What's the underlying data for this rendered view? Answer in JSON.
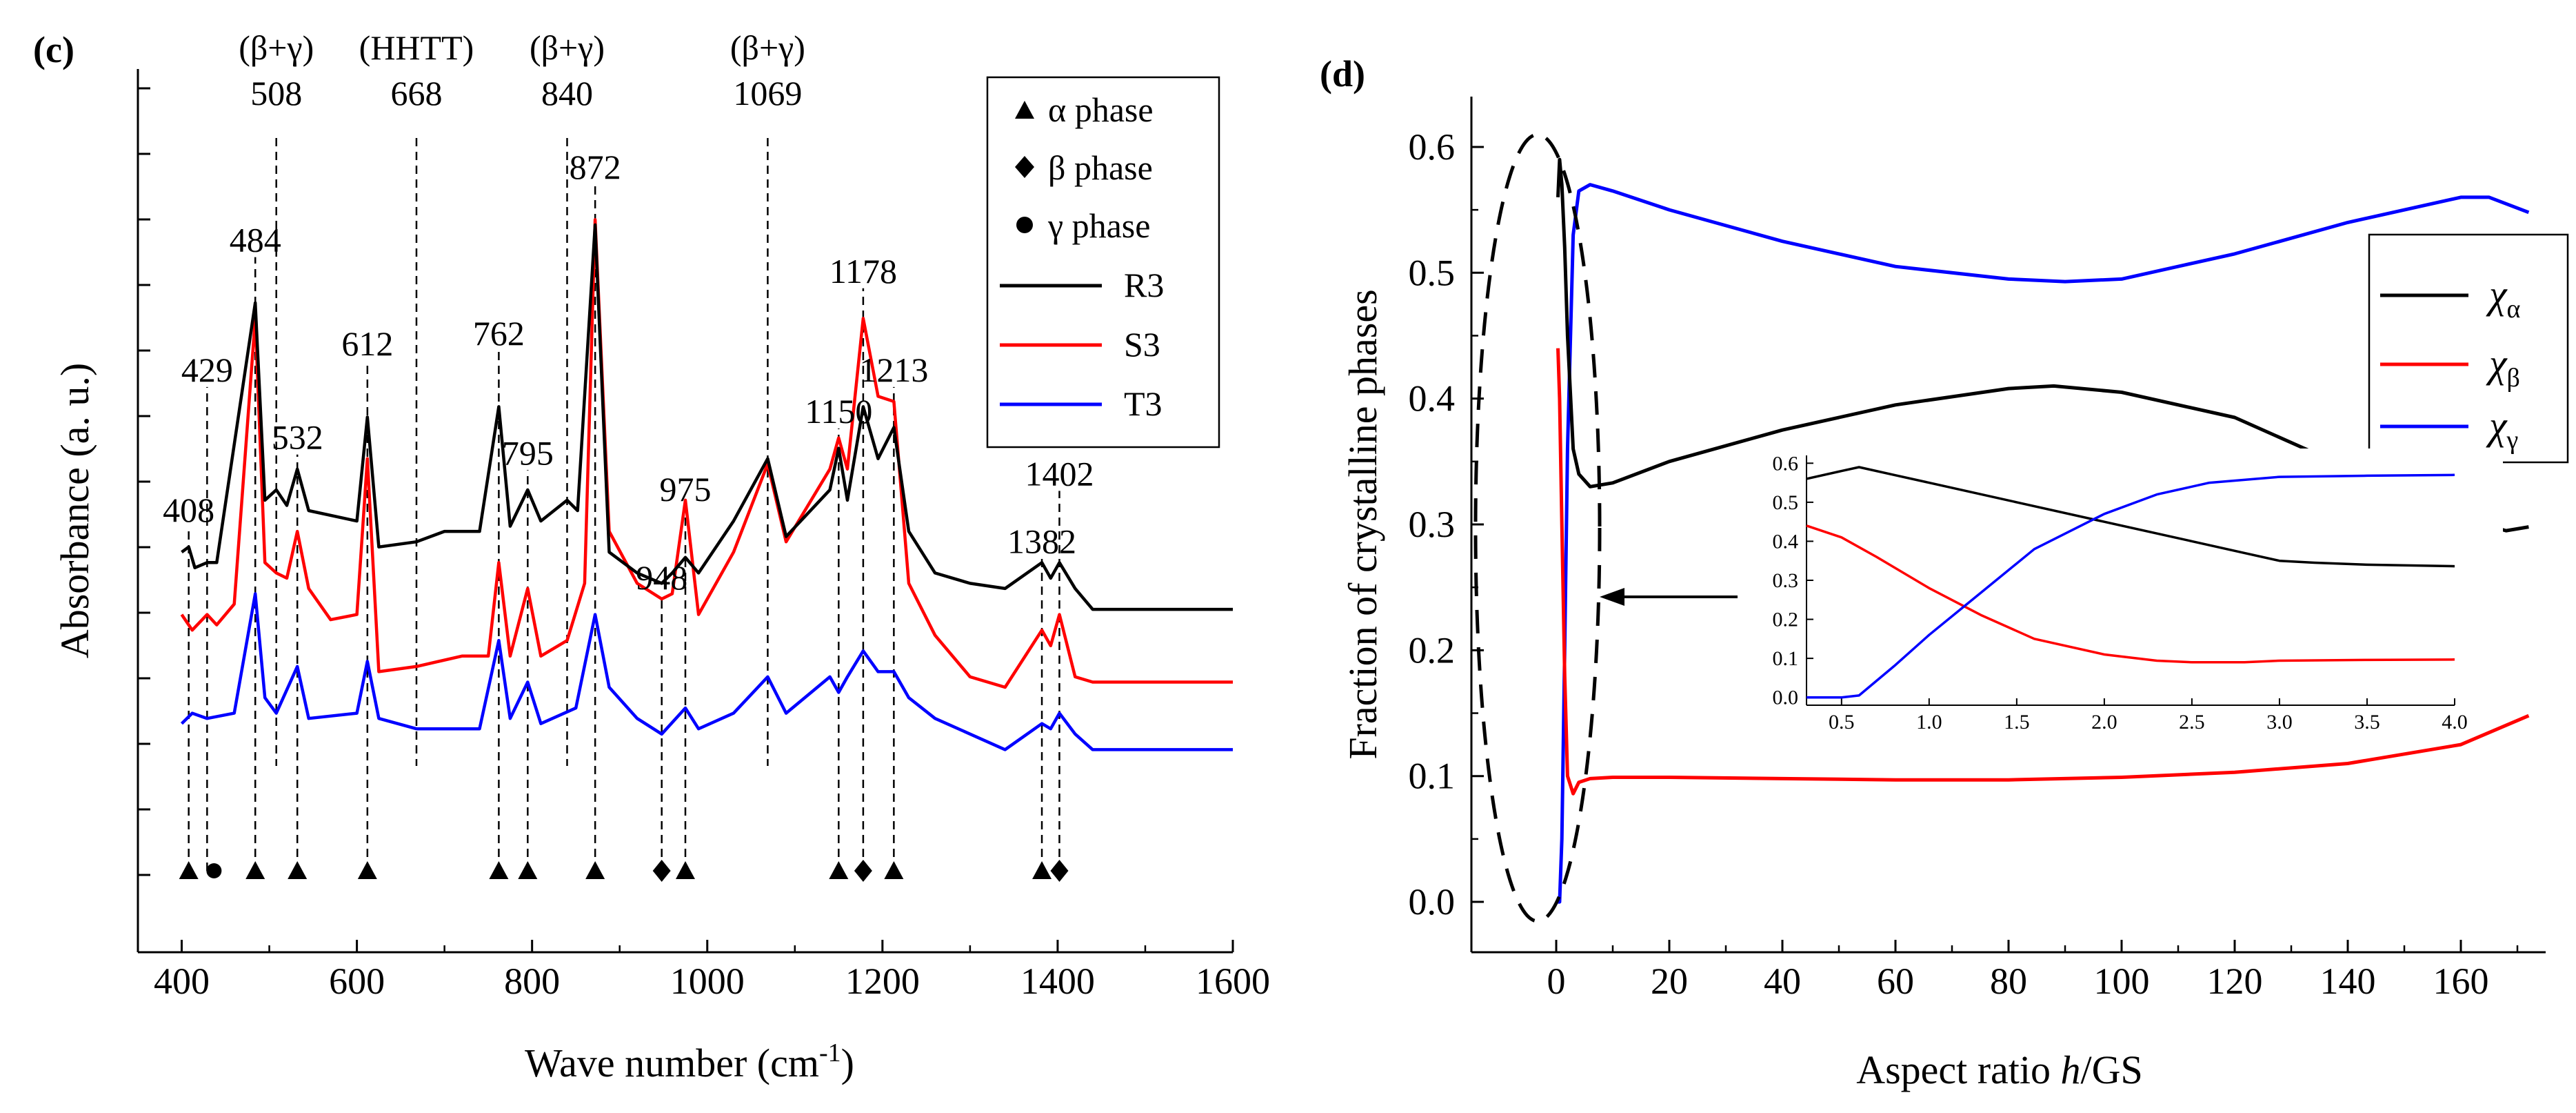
{
  "chart_data": [
    {
      "type": "line",
      "panel_label": "(c)",
      "xlabel": "Wave number (cm",
      "xlabel_sup": "-1",
      "xlabel_close": ")",
      "ylabel": "Absorbance (a. u.)",
      "xlim": [
        350,
        1600
      ],
      "ylim": [
        -0.15,
        1.55
      ],
      "x_ticks": [
        400,
        600,
        800,
        1000,
        1200,
        1400,
        1600
      ],
      "series": [
        {
          "name": "R3",
          "color": "#000000",
          "base": 0.58,
          "tail": 0.58,
          "tail_start": 1240,
          "points": [
            [
              400,
              0.62
            ],
            [
              408,
              0.63
            ],
            [
              415,
              0.59
            ],
            [
              429,
              0.6
            ],
            [
              440,
              0.6
            ],
            [
              484,
              1.1
            ],
            [
              495,
              0.72
            ],
            [
              508,
              0.74
            ],
            [
              520,
              0.71
            ],
            [
              532,
              0.78
            ],
            [
              545,
              0.7
            ],
            [
              600,
              0.68
            ],
            [
              612,
              0.88
            ],
            [
              625,
              0.63
            ],
            [
              668,
              0.64
            ],
            [
              700,
              0.66
            ],
            [
              740,
              0.66
            ],
            [
              762,
              0.9
            ],
            [
              775,
              0.67
            ],
            [
              795,
              0.74
            ],
            [
              810,
              0.68
            ],
            [
              840,
              0.72
            ],
            [
              852,
              0.7
            ],
            [
              872,
              1.25
            ],
            [
              888,
              0.62
            ],
            [
              920,
              0.58
            ],
            [
              948,
              0.56
            ],
            [
              960,
              0.58
            ],
            [
              975,
              0.61
            ],
            [
              990,
              0.58
            ],
            [
              1030,
              0.68
            ],
            [
              1069,
              0.8
            ],
            [
              1090,
              0.65
            ],
            [
              1140,
              0.74
            ],
            [
              1150,
              0.82
            ],
            [
              1160,
              0.72
            ],
            [
              1178,
              0.9
            ],
            [
              1195,
              0.8
            ],
            [
              1213,
              0.86
            ],
            [
              1230,
              0.66
            ],
            [
              1260,
              0.58
            ],
            [
              1300,
              0.56
            ],
            [
              1340,
              0.55
            ],
            [
              1382,
              0.6
            ],
            [
              1392,
              0.57
            ],
            [
              1402,
              0.6
            ],
            [
              1420,
              0.55
            ],
            [
              1440,
              0.51
            ],
            [
              1500,
              0.51
            ],
            [
              1600,
              0.51
            ]
          ]
        },
        {
          "name": "S3",
          "color": "#ff0000",
          "points": [
            [
              400,
              0.5
            ],
            [
              412,
              0.47
            ],
            [
              429,
              0.5
            ],
            [
              440,
              0.48
            ],
            [
              460,
              0.52
            ],
            [
              484,
              1.07
            ],
            [
              495,
              0.6
            ],
            [
              508,
              0.58
            ],
            [
              520,
              0.57
            ],
            [
              532,
              0.66
            ],
            [
              545,
              0.55
            ],
            [
              570,
              0.49
            ],
            [
              600,
              0.5
            ],
            [
              612,
              0.8
            ],
            [
              625,
              0.39
            ],
            [
              668,
              0.4
            ],
            [
              720,
              0.42
            ],
            [
              750,
              0.42
            ],
            [
              762,
              0.6
            ],
            [
              775,
              0.42
            ],
            [
              795,
              0.55
            ],
            [
              810,
              0.42
            ],
            [
              840,
              0.45
            ],
            [
              860,
              0.56
            ],
            [
              872,
              1.26
            ],
            [
              888,
              0.66
            ],
            [
              920,
              0.56
            ],
            [
              948,
              0.53
            ],
            [
              960,
              0.54
            ],
            [
              975,
              0.72
            ],
            [
              990,
              0.5
            ],
            [
              1030,
              0.62
            ],
            [
              1069,
              0.79
            ],
            [
              1090,
              0.64
            ],
            [
              1140,
              0.78
            ],
            [
              1150,
              0.84
            ],
            [
              1160,
              0.78
            ],
            [
              1178,
              1.07
            ],
            [
              1195,
              0.92
            ],
            [
              1213,
              0.91
            ],
            [
              1230,
              0.56
            ],
            [
              1260,
              0.46
            ],
            [
              1300,
              0.38
            ],
            [
              1340,
              0.36
            ],
            [
              1382,
              0.47
            ],
            [
              1392,
              0.44
            ],
            [
              1402,
              0.5
            ],
            [
              1420,
              0.38
            ],
            [
              1440,
              0.37
            ],
            [
              1500,
              0.37
            ],
            [
              1600,
              0.37
            ]
          ]
        },
        {
          "name": "T3",
          "color": "#0000ff",
          "points": [
            [
              400,
              0.29
            ],
            [
              412,
              0.31
            ],
            [
              429,
              0.3
            ],
            [
              460,
              0.31
            ],
            [
              484,
              0.54
            ],
            [
              495,
              0.34
            ],
            [
              508,
              0.31
            ],
            [
              532,
              0.4
            ],
            [
              545,
              0.3
            ],
            [
              600,
              0.31
            ],
            [
              612,
              0.41
            ],
            [
              625,
              0.3
            ],
            [
              668,
              0.28
            ],
            [
              740,
              0.28
            ],
            [
              762,
              0.45
            ],
            [
              775,
              0.3
            ],
            [
              795,
              0.37
            ],
            [
              810,
              0.29
            ],
            [
              850,
              0.32
            ],
            [
              872,
              0.5
            ],
            [
              888,
              0.36
            ],
            [
              920,
              0.3
            ],
            [
              948,
              0.27
            ],
            [
              975,
              0.32
            ],
            [
              990,
              0.28
            ],
            [
              1030,
              0.31
            ],
            [
              1069,
              0.38
            ],
            [
              1090,
              0.31
            ],
            [
              1140,
              0.38
            ],
            [
              1150,
              0.35
            ],
            [
              1160,
              0.38
            ],
            [
              1178,
              0.43
            ],
            [
              1195,
              0.39
            ],
            [
              1213,
              0.39
            ],
            [
              1230,
              0.34
            ],
            [
              1260,
              0.3
            ],
            [
              1300,
              0.27
            ],
            [
              1340,
              0.24
            ],
            [
              1382,
              0.29
            ],
            [
              1392,
              0.28
            ],
            [
              1402,
              0.31
            ],
            [
              1420,
              0.27
            ],
            [
              1440,
              0.24
            ],
            [
              1500,
              0.24
            ],
            [
              1600,
              0.24
            ]
          ]
        }
      ],
      "peak_labels": [
        {
          "x": 408,
          "label": "408",
          "y": 0.66
        },
        {
          "x": 429,
          "label": "429",
          "y": 0.93
        },
        {
          "x": 484,
          "label": "484",
          "y": 1.18
        },
        {
          "x": 532,
          "label": "532",
          "y": 0.8
        },
        {
          "x": 612,
          "label": "612",
          "y": 0.98
        },
        {
          "x": 762,
          "label": "762",
          "y": 1.0
        },
        {
          "x": 795,
          "label": "795",
          "y": 0.77
        },
        {
          "x": 872,
          "label": "872",
          "y": 1.32
        },
        {
          "x": 948,
          "label": "948",
          "y": 0.53
        },
        {
          "x": 975,
          "label": "975",
          "y": 0.7
        },
        {
          "x": 1150,
          "label": "1150",
          "y": 0.85
        },
        {
          "x": 1178,
          "label": "1178",
          "y": 1.12
        },
        {
          "x": 1213,
          "label": "1213",
          "y": 0.93
        },
        {
          "x": 1382,
          "label": "1382",
          "y": 0.6
        },
        {
          "x": 1402,
          "label": "1402",
          "y": 0.73
        }
      ],
      "top_labels": [
        {
          "x": 508,
          "phase": "(β+γ)",
          "label": "508"
        },
        {
          "x": 668,
          "phase": "(HHTT)",
          "label": "668"
        },
        {
          "x": 840,
          "phase": "(β+γ)",
          "label": "840"
        },
        {
          "x": 1069,
          "phase": "(β+γ)",
          "label": "1069"
        }
      ],
      "phase_markers": [
        {
          "x": 408,
          "shape": "triangle"
        },
        {
          "x": 429,
          "shape": "circle"
        },
        {
          "x": 484,
          "shape": "triangle"
        },
        {
          "x": 532,
          "shape": "triangle"
        },
        {
          "x": 612,
          "shape": "triangle"
        },
        {
          "x": 762,
          "shape": "triangle"
        },
        {
          "x": 795,
          "shape": "triangle"
        },
        {
          "x": 872,
          "shape": "triangle"
        },
        {
          "x": 948,
          "shape": "diamond"
        },
        {
          "x": 975,
          "shape": "triangle"
        },
        {
          "x": 1150,
          "shape": "triangle"
        },
        {
          "x": 1178,
          "shape": "diamond"
        },
        {
          "x": 1213,
          "shape": "triangle"
        },
        {
          "x": 1382,
          "shape": "triangle"
        },
        {
          "x": 1402,
          "shape": "diamond"
        }
      ],
      "legend": {
        "phases": [
          {
            "shape": "triangle",
            "label": "α phase"
          },
          {
            "shape": "diamond",
            "label": "β phase"
          },
          {
            "shape": "circle",
            "label": "γ phase"
          }
        ],
        "lines": [
          {
            "label": "R3",
            "color": "#000000"
          },
          {
            "label": "S3",
            "color": "#ff0000"
          },
          {
            "label": "T3",
            "color": "#0000ff"
          }
        ]
      }
    },
    {
      "type": "line",
      "panel_label": "(d)",
      "xlabel": "Aspect ratio ",
      "xlabel_italic": "h",
      "xlabel_rest": "/GS",
      "ylabel": "Fraction of crystalline phases",
      "xlim": [
        -15,
        175
      ],
      "ylim": [
        -0.04,
        0.64
      ],
      "x_ticks": [
        0,
        20,
        40,
        60,
        80,
        100,
        120,
        140,
        160
      ],
      "y_ticks": [
        "0.0",
        "0.1",
        "0.2",
        "0.3",
        "0.4",
        "0.5",
        "0.6"
      ],
      "series": [
        {
          "name": "χα",
          "symbol": "χ",
          "sub": "α",
          "color": "#000000",
          "x": [
            0.3,
            0.6,
            1,
            1.5,
            2,
            3,
            4,
            6,
            10,
            20,
            40,
            60,
            80,
            88,
            100,
            120,
            140,
            160,
            168,
            172
          ],
          "y": [
            0.56,
            0.59,
            0.57,
            0.52,
            0.45,
            0.36,
            0.34,
            0.33,
            0.333,
            0.35,
            0.375,
            0.395,
            0.408,
            0.41,
            0.405,
            0.385,
            0.345,
            0.305,
            0.295,
            0.298
          ]
        },
        {
          "name": "χβ",
          "symbol": "χ",
          "sub": "β",
          "color": "#ff0000",
          "x": [
            0.3,
            0.6,
            1,
            1.5,
            2,
            3,
            4,
            6,
            10,
            20,
            40,
            60,
            80,
            100,
            120,
            140,
            160,
            172
          ],
          "y": [
            0.44,
            0.4,
            0.3,
            0.18,
            0.1,
            0.086,
            0.095,
            0.098,
            0.099,
            0.099,
            0.098,
            0.097,
            0.097,
            0.099,
            0.103,
            0.11,
            0.125,
            0.148
          ]
        },
        {
          "name": "χγ",
          "symbol": "χ",
          "sub": "γ",
          "color": "#0000ff",
          "x": [
            0.3,
            0.6,
            1,
            1.5,
            2,
            3,
            4,
            6,
            10,
            20,
            40,
            60,
            80,
            90,
            100,
            120,
            140,
            160,
            165,
            172
          ],
          "y": [
            0.0,
            0.0,
            0.05,
            0.2,
            0.36,
            0.53,
            0.565,
            0.57,
            0.565,
            0.55,
            0.525,
            0.505,
            0.495,
            0.493,
            0.495,
            0.515,
            0.54,
            0.56,
            0.56,
            0.548
          ]
        }
      ],
      "inset": {
        "xlim": [
          0.3,
          4.0
        ],
        "ylim": [
          -0.02,
          0.62
        ],
        "x_ticks": [
          "0.5",
          "1.0",
          "1.5",
          "2.0",
          "2.5",
          "3.0",
          "3.5",
          "4.0"
        ],
        "y_ticks": [
          "0.0",
          "0.1",
          "0.2",
          "0.3",
          "0.4",
          "0.5",
          "0.6"
        ],
        "series": [
          {
            "name": "χα",
            "color": "#000000",
            "x": [
              0.3,
              0.5,
              0.6,
              0.8,
              1.0,
              1.5,
              2.0,
              2.5,
              2.8,
              3.0,
              3.2,
              3.5,
              4.0
            ],
            "y": [
              0.56,
              0.58,
              0.59,
              0.57,
              0.55,
              0.5,
              0.45,
              0.4,
              0.37,
              0.35,
              0.345,
              0.34,
              0.336
            ]
          },
          {
            "name": "χβ",
            "color": "#ff0000",
            "x": [
              0.3,
              0.5,
              0.7,
              1.0,
              1.3,
              1.6,
              2.0,
              2.3,
              2.5,
              2.8,
              3.0,
              3.5,
              4.0
            ],
            "y": [
              0.44,
              0.41,
              0.36,
              0.28,
              0.21,
              0.15,
              0.11,
              0.094,
              0.09,
              0.09,
              0.094,
              0.096,
              0.097
            ]
          },
          {
            "name": "χγ",
            "color": "#0000ff",
            "x": [
              0.3,
              0.5,
              0.6,
              0.8,
              1.0,
              1.3,
              1.6,
              2.0,
              2.3,
              2.6,
              3.0,
              3.5,
              4.0
            ],
            "y": [
              0.0,
              0.0,
              0.005,
              0.08,
              0.16,
              0.27,
              0.38,
              0.47,
              0.52,
              0.55,
              0.565,
              0.568,
              0.57
            ]
          }
        ]
      }
    }
  ]
}
